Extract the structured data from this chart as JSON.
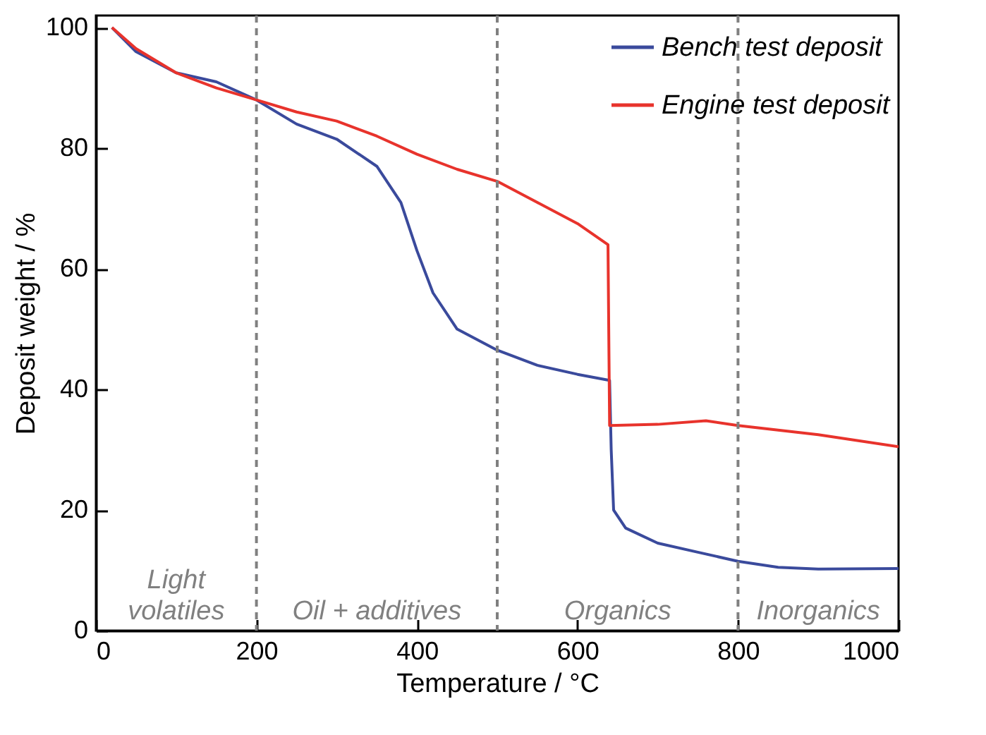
{
  "chart_data": {
    "type": "line",
    "xlabel": "Temperature / °C",
    "ylabel": "Deposit weight / %",
    "xlim": [
      0,
      1000
    ],
    "xticks": [
      0,
      200,
      400,
      600,
      800,
      1000
    ],
    "ylim": [
      0,
      102
    ],
    "yticks": [
      0,
      20,
      40,
      60,
      80,
      100
    ],
    "grid": false,
    "legend": "top right",
    "line_style": "solid",
    "series": [
      {
        "name": "Bench test deposit",
        "color": "#3a4a9c",
        "x": [
          20,
          50,
          100,
          150,
          200,
          250,
          300,
          350,
          380,
          400,
          420,
          450,
          500,
          550,
          600,
          640,
          642,
          645,
          660,
          700,
          750,
          800,
          850,
          900,
          1000
        ],
        "values": [
          100,
          96,
          92.5,
          91,
          88,
          84,
          81.5,
          77,
          71,
          63,
          56,
          50,
          46.5,
          44,
          42.5,
          41.5,
          30,
          20,
          17,
          14.5,
          13,
          11.5,
          10.5,
          10.2,
          10.3
        ]
      },
      {
        "name": "Engine test deposit",
        "color": "#e8332c",
        "x": [
          20,
          50,
          100,
          150,
          200,
          250,
          300,
          350,
          400,
          450,
          500,
          550,
          600,
          638,
          640,
          700,
          760,
          800,
          900,
          1000
        ],
        "values": [
          100,
          96.5,
          92.5,
          90,
          88,
          86,
          84.5,
          82,
          79,
          76.5,
          74.5,
          71,
          67.5,
          64,
          34,
          34.2,
          34.8,
          34,
          32.5,
          30.5
        ]
      }
    ],
    "ref_lines": [
      {
        "axis": "x",
        "value": 200,
        "color": "#808080",
        "line_style": "dashed"
      },
      {
        "axis": "x",
        "value": 500,
        "color": "#808080",
        "line_style": "dashed"
      },
      {
        "axis": "x",
        "value": 800,
        "color": "#808080",
        "line_style": "dashed"
      }
    ],
    "annotations": [
      "Light\nvolatiles",
      "Oil + additives",
      "Organics",
      "Inorganics"
    ]
  }
}
